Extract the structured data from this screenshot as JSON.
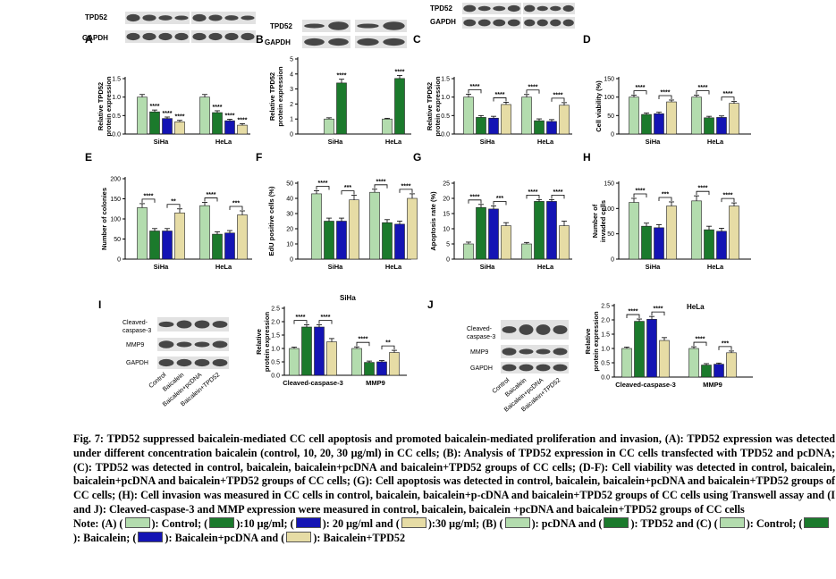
{
  "colors": {
    "c1": "#b3dcae",
    "c2": "#1b7a2c",
    "c3": "#1414b4",
    "c4": "#e6dca5"
  },
  "blots": {
    "A": {
      "letter": "A",
      "labels": [
        "TPD52",
        "GAPDH"
      ]
    },
    "B": {
      "letter": "B",
      "labels": [
        "TPD52",
        "GAPDH"
      ]
    },
    "C": {
      "letter": "C",
      "labels": [
        "TPD52",
        "GAPDH"
      ]
    },
    "I": {
      "letter": "I",
      "labels": [
        "Cleaved-caspase-3",
        "MMP9",
        "GAPDH"
      ],
      "lanes": [
        "Control",
        "Baicalein",
        "Baicalein+pcDNA",
        "Baicalein+TPD52"
      ]
    },
    "J": {
      "letter": "J",
      "labels": [
        "Cleaved-caspase-3",
        "MMP9",
        "GAPDH"
      ],
      "lanes": [
        "Control",
        "Baicalein",
        "Baicalein+pcDNA",
        "Baicalein+TPD52"
      ]
    }
  },
  "chart_data": [
    {
      "id": "A",
      "letter": "A",
      "type": "bar",
      "ylabel": "Relative TPD52 protein expression",
      "categories": [
        "SiHa",
        "HeLa"
      ],
      "ylim": [
        0,
        1.5
      ],
      "yticks": [
        0,
        0.5,
        1,
        1.5
      ],
      "tick_fmt": 1,
      "series": [
        {
          "values": [
            1.0,
            1.0
          ]
        },
        {
          "values": [
            0.6,
            0.58
          ]
        },
        {
          "values": [
            0.42,
            0.36
          ]
        },
        {
          "values": [
            0.33,
            0.24
          ]
        }
      ],
      "errors": [
        [
          0.07,
          0.07
        ],
        [
          0.05,
          0.05
        ],
        [
          0.04,
          0.04
        ],
        [
          0.04,
          0.04
        ]
      ],
      "colors": [
        "c1",
        "c2",
        "c3",
        "c4"
      ],
      "annotations": [
        {
          "s": [
            1,
            0
          ],
          "t": "****"
        },
        {
          "s": [
            2,
            0
          ],
          "t": "****"
        },
        {
          "s": [
            3,
            0
          ],
          "t": "****"
        },
        {
          "s": [
            1,
            1
          ],
          "t": "****"
        },
        {
          "s": [
            2,
            1
          ],
          "t": "****"
        },
        {
          "s": [
            3,
            1
          ],
          "t": "****"
        }
      ]
    },
    {
      "id": "B",
      "letter": "B",
      "type": "bar",
      "ylabel": "Relative TPD52 protein expression",
      "categories": [
        "SiHa",
        "HeLa"
      ],
      "ylim": [
        0,
        5
      ],
      "yticks": [
        0,
        1,
        2,
        3,
        4,
        5
      ],
      "tick_fmt": 0,
      "series": [
        {
          "values": [
            1.0,
            1.0
          ]
        },
        {
          "values": [
            3.4,
            3.7
          ]
        }
      ],
      "errors": [
        [
          0.08,
          0.05
        ],
        [
          0.25,
          0.2
        ]
      ],
      "colors": [
        "c1",
        "c2"
      ],
      "annotations": [
        {
          "s": [
            1,
            0
          ],
          "t": "****"
        },
        {
          "s": [
            1,
            1
          ],
          "t": "****"
        }
      ]
    },
    {
      "id": "C",
      "letter": "C",
      "type": "bar",
      "ylabel": "Relative TPD52 protein expression",
      "categories": [
        "SiHa",
        "HeLa"
      ],
      "ylim": [
        0,
        1.5
      ],
      "yticks": [
        0,
        0.5,
        1,
        1.5
      ],
      "tick_fmt": 1,
      "series": [
        {
          "values": [
            1.0,
            1.0
          ]
        },
        {
          "values": [
            0.45,
            0.36
          ]
        },
        {
          "values": [
            0.43,
            0.34
          ]
        },
        {
          "values": [
            0.8,
            0.78
          ]
        }
      ],
      "errors": [
        [
          0.08,
          0.07
        ],
        [
          0.05,
          0.05
        ],
        [
          0.05,
          0.05
        ],
        [
          0.06,
          0.07
        ]
      ],
      "colors": [
        "c1",
        "c2",
        "c3",
        "c4"
      ],
      "brackets": [
        {
          "g": 0,
          "a": 0,
          "b": 1,
          "t": "****"
        },
        {
          "g": 0,
          "a": 2,
          "b": 3,
          "t": "****"
        },
        {
          "g": 1,
          "a": 0,
          "b": 1,
          "t": "****"
        },
        {
          "g": 1,
          "a": 2,
          "b": 3,
          "t": "****"
        }
      ]
    },
    {
      "id": "D",
      "letter": "D",
      "type": "bar",
      "ylabel": "Cell viability (%)",
      "categories": [
        "SiHa",
        "HeLa"
      ],
      "ylim": [
        0,
        150
      ],
      "yticks": [
        0,
        50,
        100,
        150
      ],
      "tick_fmt": 0,
      "series": [
        {
          "values": [
            100,
            100
          ]
        },
        {
          "values": [
            53,
            44
          ]
        },
        {
          "values": [
            55,
            45
          ]
        },
        {
          "values": [
            87,
            83
          ]
        }
      ],
      "errors": [
        [
          5,
          5
        ],
        [
          4,
          4
        ],
        [
          4,
          4
        ],
        [
          5,
          5
        ]
      ],
      "colors": [
        "c1",
        "c2",
        "c3",
        "c4"
      ],
      "brackets": [
        {
          "g": 0,
          "a": 0,
          "b": 1,
          "t": "****"
        },
        {
          "g": 0,
          "a": 2,
          "b": 3,
          "t": "****"
        },
        {
          "g": 1,
          "a": 0,
          "b": 1,
          "t": "****"
        },
        {
          "g": 1,
          "a": 2,
          "b": 3,
          "t": "****"
        }
      ]
    },
    {
      "id": "E",
      "letter": "E",
      "type": "bar",
      "ylabel": "Number of colonies",
      "categories": [
        "SiHa",
        "HeLa"
      ],
      "ylim": [
        0,
        200
      ],
      "yticks": [
        0,
        50,
        100,
        150,
        200
      ],
      "tick_fmt": 0,
      "series": [
        {
          "values": [
            128,
            133
          ]
        },
        {
          "values": [
            70,
            62
          ]
        },
        {
          "values": [
            70,
            65
          ]
        },
        {
          "values": [
            115,
            110
          ]
        }
      ],
      "errors": [
        [
          10,
          8
        ],
        [
          6,
          6
        ],
        [
          6,
          6
        ],
        [
          10,
          10
        ]
      ],
      "colors": [
        "c1",
        "c2",
        "c3",
        "c4"
      ],
      "brackets": [
        {
          "g": 0,
          "a": 0,
          "b": 1,
          "t": "****"
        },
        {
          "g": 0,
          "a": 2,
          "b": 3,
          "t": "**"
        },
        {
          "g": 1,
          "a": 0,
          "b": 1,
          "t": "****"
        },
        {
          "g": 1,
          "a": 2,
          "b": 3,
          "t": "***"
        }
      ]
    },
    {
      "id": "F",
      "letter": "F",
      "type": "bar",
      "ylabel": "EdU positive cells (%)",
      "categories": [
        "SiHa",
        "HeLa"
      ],
      "ylim": [
        0,
        50
      ],
      "yticks": [
        0,
        10,
        20,
        30,
        40,
        50
      ],
      "tick_fmt": 0,
      "series": [
        {
          "values": [
            43,
            44
          ]
        },
        {
          "values": [
            25,
            24
          ]
        },
        {
          "values": [
            25,
            23
          ]
        },
        {
          "values": [
            39,
            40
          ]
        }
      ],
      "errors": [
        [
          2,
          2
        ],
        [
          2,
          2
        ],
        [
          2,
          2
        ],
        [
          3,
          3
        ]
      ],
      "colors": [
        "c1",
        "c2",
        "c3",
        "c4"
      ],
      "brackets": [
        {
          "g": 0,
          "a": 0,
          "b": 1,
          "t": "****"
        },
        {
          "g": 0,
          "a": 2,
          "b": 3,
          "t": "***"
        },
        {
          "g": 1,
          "a": 0,
          "b": 1,
          "t": "****"
        },
        {
          "g": 1,
          "a": 2,
          "b": 3,
          "t": "****"
        }
      ]
    },
    {
      "id": "G",
      "letter": "G",
      "type": "bar",
      "ylabel": "Apoptosis rate (%)",
      "categories": [
        "SiHa",
        "HeLa"
      ],
      "ylim": [
        0,
        25
      ],
      "yticks": [
        0,
        5,
        10,
        15,
        20,
        25
      ],
      "tick_fmt": 0,
      "series": [
        {
          "values": [
            5,
            5
          ]
        },
        {
          "values": [
            17,
            19
          ]
        },
        {
          "values": [
            16.5,
            19
          ]
        },
        {
          "values": [
            11,
            11
          ]
        }
      ],
      "errors": [
        [
          0.6,
          0.5
        ],
        [
          1,
          0.6
        ],
        [
          1,
          0.6
        ],
        [
          1,
          1.5
        ]
      ],
      "colors": [
        "c1",
        "c2",
        "c3",
        "c4"
      ],
      "brackets": [
        {
          "g": 0,
          "a": 0,
          "b": 1,
          "t": "****"
        },
        {
          "g": 0,
          "a": 2,
          "b": 3,
          "t": "***"
        },
        {
          "g": 1,
          "a": 0,
          "b": 1,
          "t": "****"
        },
        {
          "g": 1,
          "a": 2,
          "b": 3,
          "t": "****"
        }
      ]
    },
    {
      "id": "H",
      "letter": "H",
      "type": "bar",
      "ylabel": "Number of invaded cells",
      "categories": [
        "SiHa",
        "HeLa"
      ],
      "ylim": [
        0,
        150
      ],
      "yticks": [
        0,
        50,
        100,
        150
      ],
      "tick_fmt": 0,
      "series": [
        {
          "values": [
            112,
            115
          ]
        },
        {
          "values": [
            65,
            58
          ]
        },
        {
          "values": [
            62,
            55
          ]
        },
        {
          "values": [
            105,
            105
          ]
        }
      ],
      "errors": [
        [
          8,
          10
        ],
        [
          6,
          7
        ],
        [
          6,
          6
        ],
        [
          8,
          6
        ]
      ],
      "colors": [
        "c1",
        "c2",
        "c3",
        "c4"
      ],
      "brackets": [
        {
          "g": 0,
          "a": 0,
          "b": 1,
          "t": "****"
        },
        {
          "g": 0,
          "a": 2,
          "b": 3,
          "t": "***"
        },
        {
          "g": 1,
          "a": 0,
          "b": 1,
          "t": "****"
        },
        {
          "g": 1,
          "a": 2,
          "b": 3,
          "t": "****"
        }
      ]
    },
    {
      "id": "I",
      "letter": "",
      "type": "bar",
      "title": "SiHa",
      "ylabel": "Relative protein expression",
      "categories": [
        "Cleaved-caspase-3",
        "MMP9"
      ],
      "ylim": [
        0,
        2.5
      ],
      "yticks": [
        0,
        0.5,
        1,
        1.5,
        2,
        2.5
      ],
      "tick_fmt": 1,
      "series": [
        {
          "values": [
            1.0,
            1.0
          ]
        },
        {
          "values": [
            1.8,
            0.48
          ]
        },
        {
          "values": [
            1.8,
            0.5
          ]
        },
        {
          "values": [
            1.25,
            0.85
          ]
        }
      ],
      "errors": [
        [
          0.05,
          0.06
        ],
        [
          0.08,
          0.05
        ],
        [
          0.08,
          0.05
        ],
        [
          0.12,
          0.08
        ]
      ],
      "colors": [
        "c1",
        "c2",
        "c3",
        "c4"
      ],
      "brackets": [
        {
          "g": 0,
          "a": 0,
          "b": 1,
          "t": "****"
        },
        {
          "g": 0,
          "a": 2,
          "b": 3,
          "t": "****"
        },
        {
          "g": 1,
          "a": 0,
          "b": 1,
          "t": "****"
        },
        {
          "g": 1,
          "a": 2,
          "b": 3,
          "t": "**"
        }
      ]
    },
    {
      "id": "J",
      "letter": "",
      "type": "bar",
      "title": "HeLa",
      "ylabel": "Relative protein expression",
      "categories": [
        "Cleaved-caspase-3",
        "MMP9"
      ],
      "ylim": [
        0,
        2.5
      ],
      "yticks": [
        0,
        0.5,
        1,
        1.5,
        2,
        2.5
      ],
      "tick_fmt": 1,
      "series": [
        {
          "values": [
            1.0,
            1.0
          ]
        },
        {
          "values": [
            1.95,
            0.42
          ]
        },
        {
          "values": [
            2.02,
            0.45
          ]
        },
        {
          "values": [
            1.28,
            0.85
          ]
        }
      ],
      "errors": [
        [
          0.05,
          0.06
        ],
        [
          0.08,
          0.05
        ],
        [
          0.1,
          0.04
        ],
        [
          0.1,
          0.06
        ]
      ],
      "colors": [
        "c1",
        "c2",
        "c3",
        "c4"
      ],
      "brackets": [
        {
          "g": 0,
          "a": 0,
          "b": 1,
          "t": "****"
        },
        {
          "g": 0,
          "a": 2,
          "b": 3,
          "t": "****"
        },
        {
          "g": 1,
          "a": 0,
          "b": 1,
          "t": "****"
        },
        {
          "g": 1,
          "a": 2,
          "b": 3,
          "t": "***"
        }
      ]
    }
  ],
  "caption": {
    "text": "Fig. 7: TPD52 suppressed baicalein-mediated CC cell apoptosis and promoted baicalein-mediated proliferation and invasion, (A): TPD52 expression was detected under different concentration baicalein (control, 10, 20, 30 μg/ml) in CC cells; (B): Analysis of TPD52 expression in CC cells transfected with TPD52 and pcDNA; (C): TPD52 was detected in control, baicalein, baicalein+pcDNA and baicalein+TPD52 groups of CC cells; (D-F): Cell viability was detected in control, baicalein, baicalein+pcDNA and baicalein+TPD52 groups of CC cells; (G): Cell apoptosis was detected in control, baicalein, baicalein+pcDNA and baicalein+TPD52 groups of CC cells; (H): Cell invasion was measured in CC cells in control, baicalein, baicalein+p-cDNA and baicalein+TPD52 groups of CC cells using Transwell assay and (I and J): Cleaved-caspase-3 and MMP expression were measured in control, baicalein, baicalein +pcDNA and baicalein+TPD52 groups of CC cells",
    "note": [
      {
        "t": "Note: (A) ("
      },
      {
        "sw": "c1"
      },
      {
        "t": "): Control; ("
      },
      {
        "sw": "c2"
      },
      {
        "t": "):10 μg/ml; ("
      },
      {
        "sw": "c3"
      },
      {
        "t": "): 20 μg/ml and ("
      },
      {
        "sw": "c4"
      },
      {
        "t": "):30 μg/ml; (B) ("
      },
      {
        "sw": "c1"
      },
      {
        "t": "): pcDNA and ("
      },
      {
        "sw": "c2"
      },
      {
        "t": "): TPD52 and (C) ("
      },
      {
        "sw": "c1"
      },
      {
        "t": "): Control; ("
      },
      {
        "sw": "c2"
      },
      {
        "t": "): Baicalein; ("
      },
      {
        "sw": "c3"
      },
      {
        "t": "): Baicalein+pcDNA and ("
      },
      {
        "sw": "c4"
      },
      {
        "t": "): Baicalein+TPD52"
      }
    ]
  }
}
